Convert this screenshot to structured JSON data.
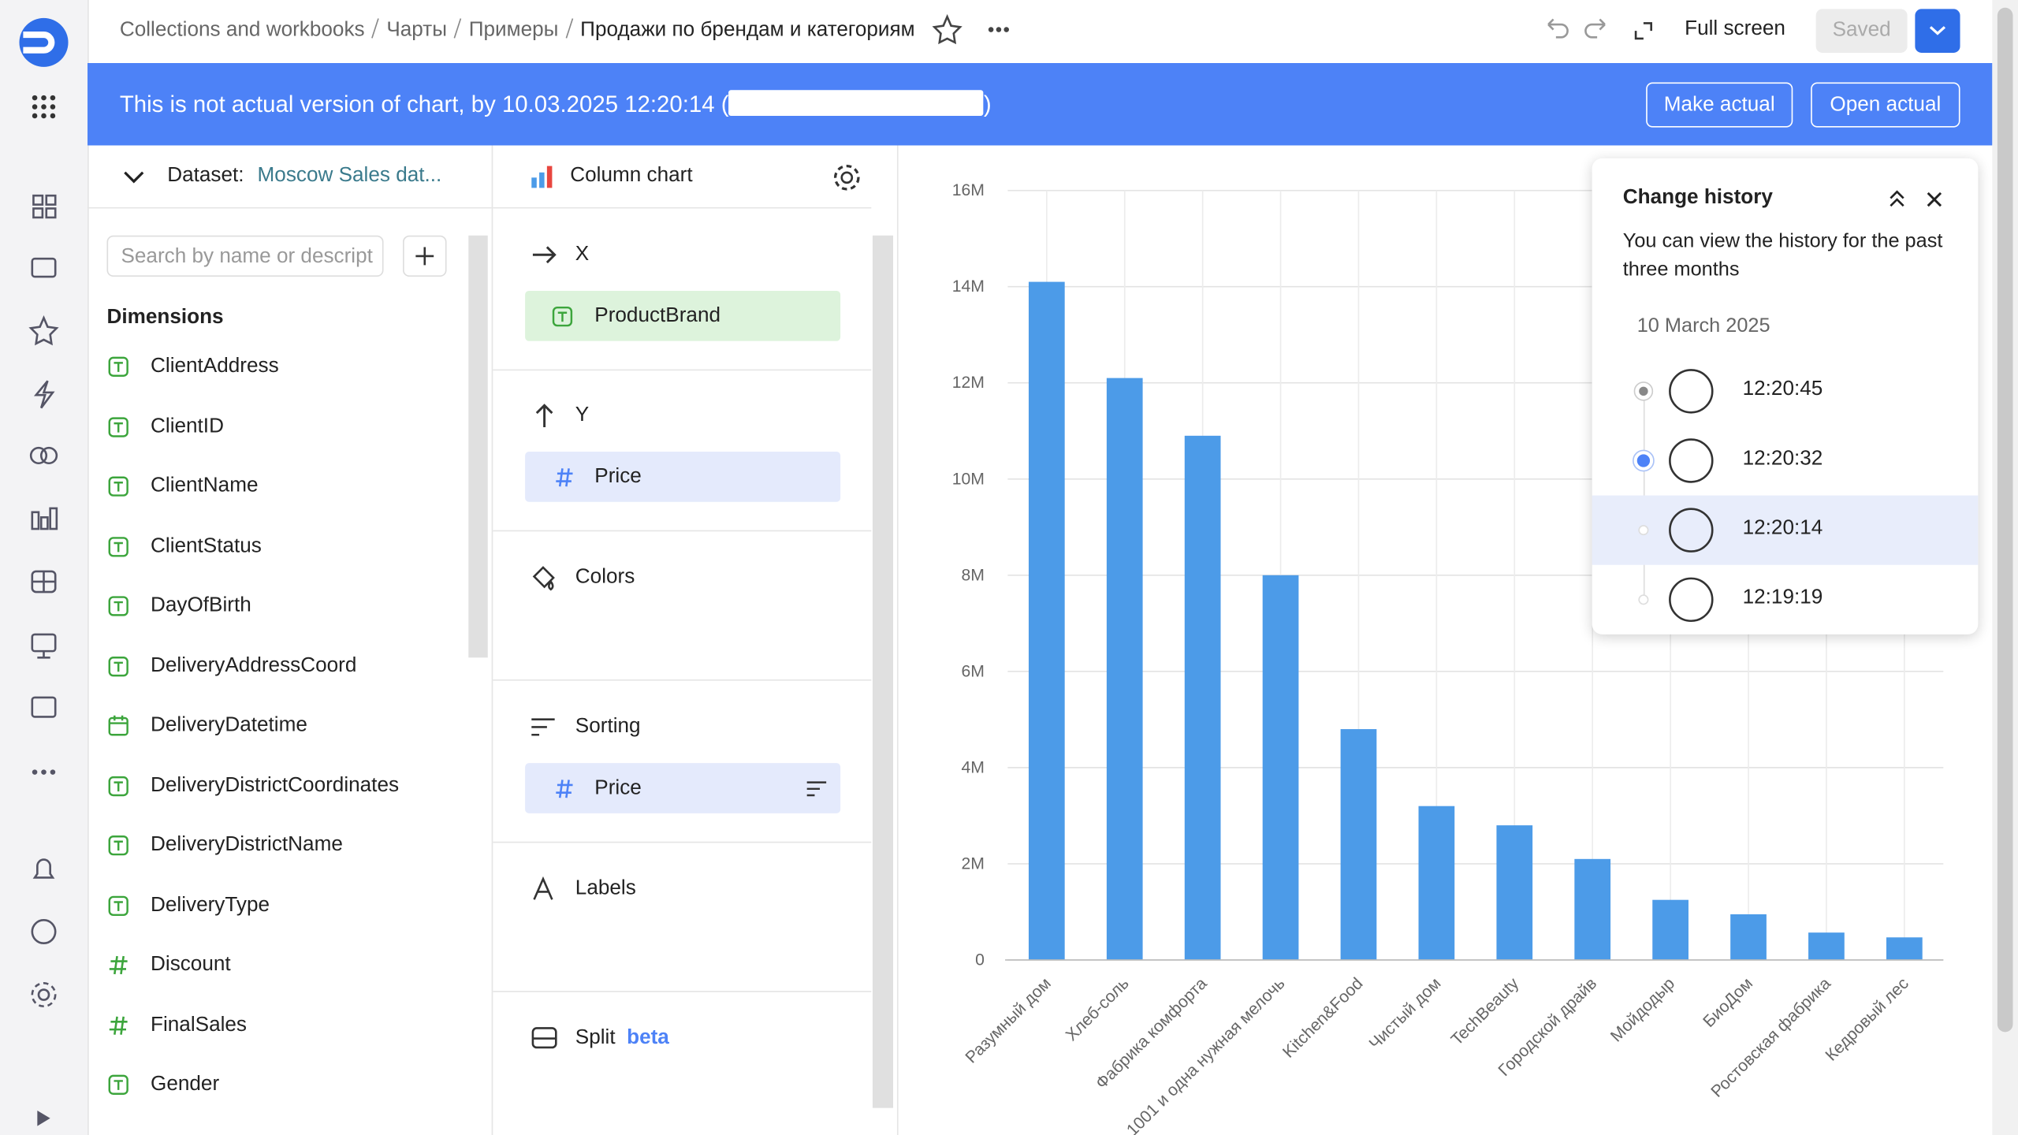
{
  "breadcrumbs": [
    "Collections and workbooks",
    "Чарты",
    "Примеры"
  ],
  "title": "Продажи по брендам и категориям",
  "header_actions": {
    "fullscreen": "Full screen",
    "saved": "Saved"
  },
  "banner": {
    "text": "This is not actual version of chart, by 10.03.2025 12:20:14 (",
    "close": ")",
    "make_actual": "Make actual",
    "open_actual": "Open actual"
  },
  "dataset": {
    "label": "Dataset:",
    "name": "Moscow Sales dat...",
    "search_placeholder": "Search by name or descript",
    "section": "Dimensions",
    "fields": [
      {
        "name": "ClientAddress",
        "kind": "string"
      },
      {
        "name": "ClientID",
        "kind": "string"
      },
      {
        "name": "ClientName",
        "kind": "string"
      },
      {
        "name": "ClientStatus",
        "kind": "string"
      },
      {
        "name": "DayOfBirth",
        "kind": "string"
      },
      {
        "name": "DeliveryAddressCoord",
        "kind": "string"
      },
      {
        "name": "DeliveryDatetime",
        "kind": "date"
      },
      {
        "name": "DeliveryDistrictCoordinates",
        "kind": "string"
      },
      {
        "name": "DeliveryDistrictName",
        "kind": "string"
      },
      {
        "name": "DeliveryType",
        "kind": "string"
      },
      {
        "name": "Discount",
        "kind": "number"
      },
      {
        "name": "FinalSales",
        "kind": "number"
      },
      {
        "name": "Gender",
        "kind": "string"
      }
    ]
  },
  "wizard": {
    "chart_type": "Column chart",
    "x_label": "X",
    "x_field": "ProductBrand",
    "y_label": "Y",
    "y_field": "Price",
    "colors": "Colors",
    "sorting": "Sorting",
    "sorting_field": "Price",
    "labels": "Labels",
    "split": "Split",
    "split_badge": "beta"
  },
  "history": {
    "title": "Change history",
    "text": "You can view the history for the past three months",
    "date": "10 March 2025",
    "times": [
      "12:20:45",
      "12:20:32",
      "12:20:14",
      "12:19:19"
    ]
  },
  "chart_data": {
    "type": "bar",
    "color": "#4c9be8",
    "grid": true,
    "categories": [
      "Разумный дом",
      "Хлеб-соль",
      "Фабрика комфорта",
      "1001 и одна нужная мелочь",
      "Kitchen&Food",
      "Чистый дом",
      "TechBeauty",
      "Городской драйв",
      "Мойдодыр",
      "БиоДом",
      "Ростовская фабрика",
      "Кедровый лес"
    ],
    "values": [
      14100000,
      12100000,
      10900000,
      8000000,
      4800000,
      3200000,
      2800000,
      2100000,
      1250000,
      950000,
      570000,
      470000
    ],
    "ylim": [
      0,
      16000000
    ],
    "yticks": [
      {
        "value": 0,
        "label": "0"
      },
      {
        "value": 2000000,
        "label": "2M"
      },
      {
        "value": 4000000,
        "label": "4M"
      },
      {
        "value": 6000000,
        "label": "6M"
      },
      {
        "value": 8000000,
        "label": "8M"
      },
      {
        "value": 10000000,
        "label": "10M"
      },
      {
        "value": 12000000,
        "label": "12M"
      },
      {
        "value": 14000000,
        "label": "14M"
      },
      {
        "value": 16000000,
        "label": "16M"
      }
    ]
  }
}
